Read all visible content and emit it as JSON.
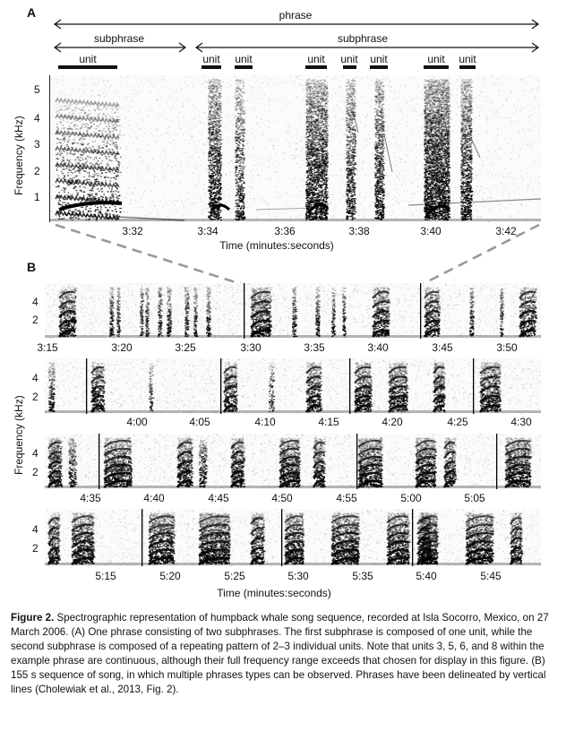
{
  "panel_a": {
    "label": "A",
    "phrase_label": "phrase",
    "subphrase_labels": [
      "subphrase",
      "subphrase"
    ],
    "unit_labels": [
      "unit",
      "unit",
      "unit",
      "unit",
      "unit",
      "unit",
      "unit",
      "unit"
    ],
    "y_axis_label": "Frequency (kHz)",
    "y_ticks": [
      "5",
      "4",
      "3",
      "2",
      "1"
    ],
    "x_ticks": [
      "3:32",
      "3:34",
      "3:36",
      "3:38",
      "3:40",
      "3:42"
    ],
    "x_axis_label": "Time (minutes:seconds)"
  },
  "panel_b": {
    "label": "B",
    "y_axis_label": "Frequency (kHz)",
    "y_ticks": [
      "4",
      "2"
    ],
    "x_axis_label": "Time (minutes:seconds)",
    "rows": [
      {
        "x_ticks": [
          "3:15",
          "3:20",
          "3:25",
          "3:30",
          "3:35",
          "3:40",
          "3:45",
          "3:50"
        ]
      },
      {
        "x_ticks": [
          "4:00",
          "4:05",
          "4:10",
          "4:15",
          "4:20",
          "4:25",
          "4:30"
        ]
      },
      {
        "x_ticks": [
          "4:35",
          "4:40",
          "4:45",
          "4:50",
          "4:55",
          "5:00",
          "5:05"
        ]
      },
      {
        "x_ticks": [
          "5:15",
          "5:20",
          "5:25",
          "5:30",
          "5:35",
          "5:40",
          "5:45"
        ]
      }
    ]
  },
  "caption": {
    "title": "Figure 2.",
    "text": " Spectrographic representation of humpback whale song sequence, recorded at Isla Socorro, Mexico, on 27 March 2006. (A) One phrase consisting of two subphrases. The first subphrase is composed of one unit, while the second subphrase is composed of a repeating pattern of 2–3 individual units. Note that units 3, 5, 6, and 8 within the example phrase are continuous, although their full frequency range exceeds that chosen for display in this figure. (B) 155 s sequence of song, in which multiple phrases types can be observed. Phrases have been delineated by vertical lines (Cholewiak et al., 2013, Fig. 2)."
  }
}
